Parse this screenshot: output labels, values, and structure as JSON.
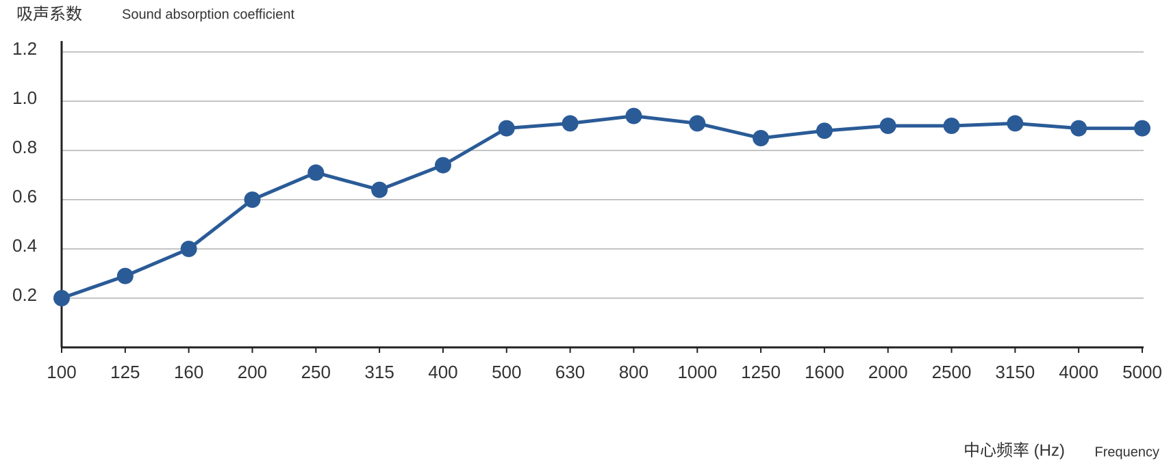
{
  "chart_data": {
    "type": "line",
    "y_label_cn": "吸声系数",
    "y_label_en": "Sound absorption coefficient",
    "x_label_cn": "中心频率 (Hz)",
    "x_label_en": "Frequency",
    "categories": [
      "100",
      "125",
      "160",
      "200",
      "250",
      "315",
      "400",
      "500",
      "630",
      "800",
      "1000",
      "1250",
      "1600",
      "2000",
      "2500",
      "3150",
      "4000",
      "5000"
    ],
    "series": [
      {
        "name": "Sound absorption coefficient",
        "color": "#2a5b97",
        "values": [
          0.2,
          0.29,
          0.4,
          0.6,
          0.71,
          0.64,
          0.74,
          0.89,
          0.91,
          0.94,
          0.91,
          0.85,
          0.88,
          0.9,
          0.9,
          0.91,
          0.89,
          0.89
        ]
      }
    ],
    "ylim": [
      0,
      1.2
    ],
    "yticks": [
      0.2,
      0.4,
      0.6,
      0.8,
      {
        "value": 1,
        "label": "1.0"
      },
      1.2
    ],
    "grid": true
  }
}
